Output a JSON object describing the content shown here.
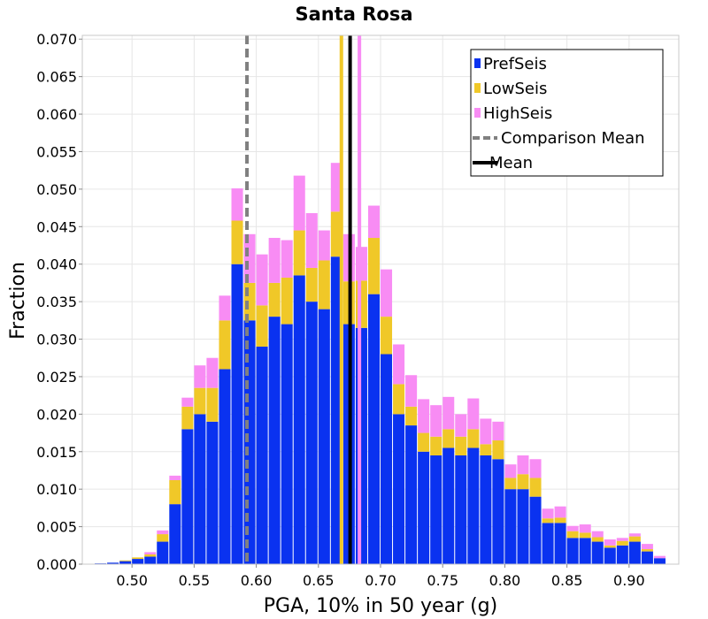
{
  "chart_data": {
    "type": "bar",
    "stacked": true,
    "title": "Santa Rosa",
    "xlabel": "PGA, 10% in 50 year (g)",
    "ylabel": "Fraction",
    "xlim": [
      0.46,
      0.94
    ],
    "ylim": [
      0.0,
      0.0705
    ],
    "grid": true,
    "legend_position": "top-right",
    "x_ticks": [
      "0.50",
      "0.55",
      "0.60",
      "0.65",
      "0.70",
      "0.75",
      "0.80",
      "0.85",
      "0.90"
    ],
    "y_ticks": [
      "0.000",
      "0.005",
      "0.010",
      "0.015",
      "0.020",
      "0.025",
      "0.030",
      "0.035",
      "0.040",
      "0.045",
      "0.050",
      "0.055",
      "0.060",
      "0.065",
      "0.070"
    ],
    "bin_width": 0.01,
    "x": [
      0.475,
      0.485,
      0.495,
      0.505,
      0.515,
      0.525,
      0.535,
      0.545,
      0.555,
      0.565,
      0.575,
      0.585,
      0.595,
      0.605,
      0.615,
      0.625,
      0.635,
      0.645,
      0.655,
      0.665,
      0.675,
      0.685,
      0.695,
      0.705,
      0.715,
      0.725,
      0.735,
      0.745,
      0.755,
      0.765,
      0.775,
      0.785,
      0.795,
      0.805,
      0.815,
      0.825,
      0.835,
      0.845,
      0.855,
      0.865,
      0.875,
      0.885,
      0.895,
      0.905,
      0.915,
      0.925
    ],
    "series": [
      {
        "name": "PrefSeis",
        "color": "#0a32f0",
        "values": [
          0.0001,
          0.0002,
          0.0004,
          0.0007,
          0.001,
          0.003,
          0.008,
          0.018,
          0.02,
          0.019,
          0.026,
          0.04,
          0.0325,
          0.029,
          0.033,
          0.032,
          0.0385,
          0.035,
          0.034,
          0.041,
          0.032,
          0.0315,
          0.036,
          0.028,
          0.02,
          0.0185,
          0.015,
          0.0145,
          0.0155,
          0.0145,
          0.0155,
          0.0145,
          0.014,
          0.01,
          0.01,
          0.009,
          0.0055,
          0.0055,
          0.0035,
          0.0035,
          0.003,
          0.0022,
          0.0025,
          0.003,
          0.0017,
          0.0008
        ]
      },
      {
        "name": "LowSeis",
        "color": "#f0c828",
        "values": [
          0.0,
          0.0,
          0.0001,
          0.0002,
          0.0003,
          0.001,
          0.0032,
          0.003,
          0.0035,
          0.0045,
          0.0065,
          0.0058,
          0.005,
          0.0055,
          0.0045,
          0.0062,
          0.006,
          0.0045,
          0.0065,
          0.006,
          0.0057,
          0.0063,
          0.0075,
          0.005,
          0.004,
          0.0025,
          0.0025,
          0.0025,
          0.0025,
          0.0025,
          0.0025,
          0.0015,
          0.0025,
          0.0015,
          0.002,
          0.0025,
          0.0006,
          0.0007,
          0.0009,
          0.0007,
          0.0006,
          0.0003,
          0.0006,
          0.0007,
          0.0003,
          0.0
        ]
      },
      {
        "name": "HighSeis",
        "color": "#f88cf4",
        "values": [
          0.0,
          0.0,
          0.0,
          0.0,
          0.0003,
          0.0005,
          0.0006,
          0.0012,
          0.003,
          0.004,
          0.0033,
          0.0043,
          0.0065,
          0.0068,
          0.006,
          0.005,
          0.0073,
          0.0073,
          0.004,
          0.0065,
          0.0063,
          0.0045,
          0.0043,
          0.0063,
          0.0053,
          0.0042,
          0.0045,
          0.0042,
          0.0043,
          0.003,
          0.0041,
          0.0034,
          0.0025,
          0.0018,
          0.0025,
          0.0025,
          0.0013,
          0.0015,
          0.0007,
          0.0011,
          0.0008,
          0.0008,
          0.0004,
          0.0004,
          0.0007,
          0.0003
        ]
      }
    ],
    "reference_lines": [
      {
        "name": "Comparison Mean",
        "x": 0.5925,
        "color": "#808080",
        "style": "dashed"
      },
      {
        "name": "Mean",
        "x": 0.6755,
        "color": "#000000",
        "style": "solid"
      },
      {
        "name": "LowSeis mean",
        "x": 0.6685,
        "color": "#f0c828",
        "style": "solid"
      },
      {
        "name": "HighSeis mean",
        "x": 0.683,
        "color": "#f88cf4",
        "style": "solid"
      }
    ],
    "legend": [
      {
        "label": "PrefSeis",
        "kind": "box",
        "color": "#0a32f0"
      },
      {
        "label": "LowSeis",
        "kind": "box",
        "color": "#f0c828"
      },
      {
        "label": "HighSeis",
        "kind": "box",
        "color": "#f88cf4"
      },
      {
        "label": "Comparison Mean",
        "kind": "dashed",
        "color": "#808080"
      },
      {
        "label": "Mean",
        "kind": "line",
        "color": "#000000"
      }
    ]
  }
}
